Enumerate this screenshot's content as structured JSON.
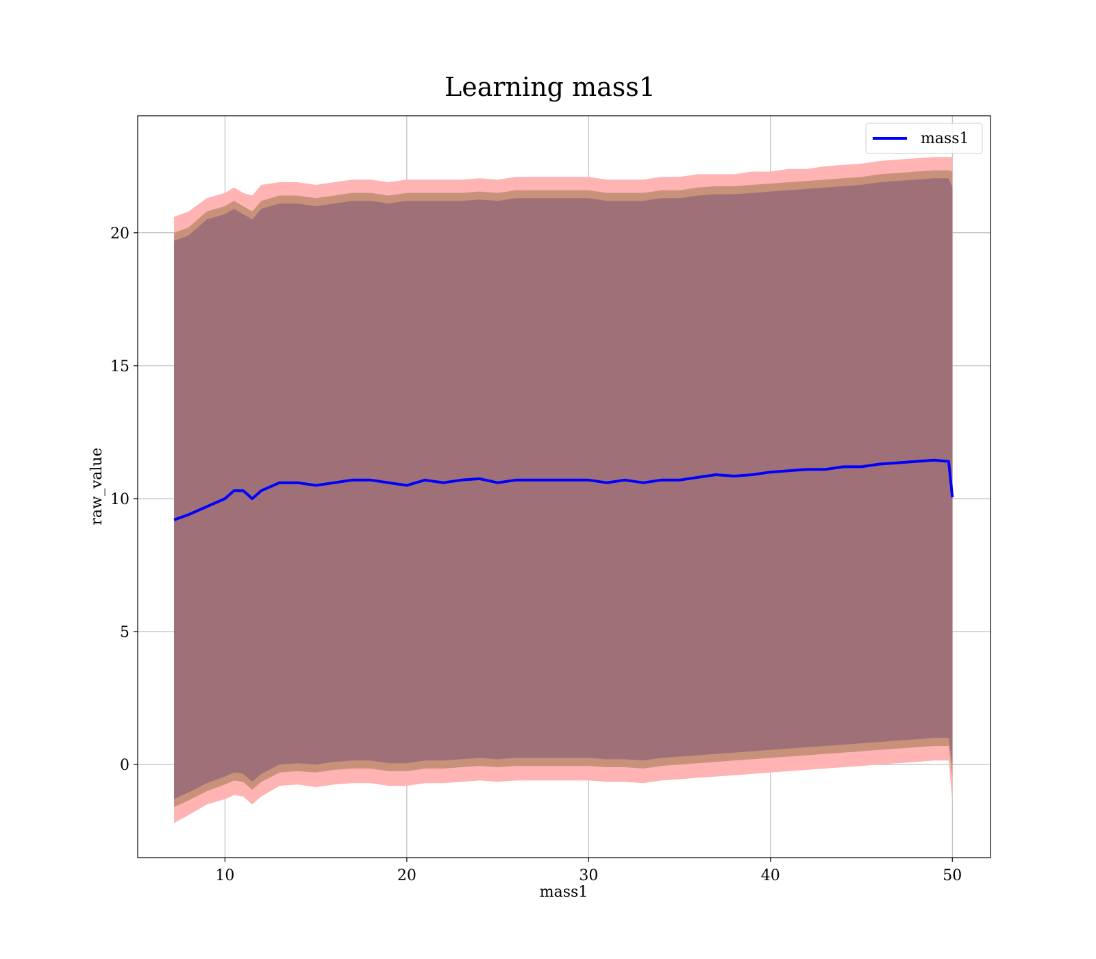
{
  "chart_data": {
    "type": "line",
    "title": "Learning mass1",
    "xlabel": "mass1",
    "ylabel": "raw_value",
    "xlim": [
      5.2,
      52.1
    ],
    "ylim": [
      -3.5,
      24.4
    ],
    "xticks": [
      10,
      20,
      30,
      40,
      50
    ],
    "yticks": [
      0,
      5,
      10,
      15,
      20
    ],
    "grid": true,
    "legend": {
      "position": "top-right",
      "entries": [
        "mass1"
      ]
    },
    "colors": {
      "line": "#0000ff",
      "band_outer": "#ffb3b3",
      "band_mid": "#c8927a",
      "band_inner": "#a07078",
      "grid": "#b0b0b0"
    },
    "x": [
      7.2,
      8,
      9,
      10,
      10.5,
      11,
      11.5,
      12,
      13,
      14,
      15,
      16,
      17,
      18,
      19,
      20,
      21,
      22,
      23,
      24,
      25,
      26,
      27,
      28,
      29,
      30,
      31,
      32,
      33,
      34,
      35,
      36,
      37,
      38,
      39,
      40,
      41,
      42,
      43,
      44,
      45,
      46,
      47,
      48,
      49,
      49.8,
      50
    ],
    "series": [
      {
        "name": "mass1",
        "values": [
          9.2,
          9.4,
          9.7,
          10.0,
          10.3,
          10.3,
          10.0,
          10.3,
          10.6,
          10.6,
          10.5,
          10.6,
          10.7,
          10.7,
          10.6,
          10.5,
          10.7,
          10.6,
          10.7,
          10.75,
          10.6,
          10.7,
          10.7,
          10.7,
          10.7,
          10.7,
          10.6,
          10.7,
          10.6,
          10.7,
          10.7,
          10.8,
          10.9,
          10.85,
          10.9,
          11.0,
          11.05,
          11.1,
          11.1,
          11.2,
          11.2,
          11.3,
          11.35,
          11.4,
          11.45,
          11.4,
          10.05
        ]
      }
    ],
    "bands": [
      {
        "upper": [
          20.6,
          20.8,
          21.3,
          21.5,
          21.7,
          21.5,
          21.4,
          21.8,
          21.9,
          21.9,
          21.8,
          21.9,
          22.0,
          22.0,
          21.9,
          22.0,
          22.0,
          22.0,
          22.0,
          22.05,
          22.0,
          22.1,
          22.1,
          22.1,
          22.1,
          22.1,
          22.0,
          22.0,
          22.0,
          22.1,
          22.1,
          22.2,
          22.2,
          22.2,
          22.3,
          22.3,
          22.4,
          22.4,
          22.5,
          22.55,
          22.6,
          22.7,
          22.75,
          22.8,
          22.85,
          22.85,
          22.85
        ],
        "lower": [
          -2.2,
          -1.9,
          -1.5,
          -1.3,
          -1.15,
          -1.2,
          -1.5,
          -1.2,
          -0.8,
          -0.75,
          -0.85,
          -0.75,
          -0.7,
          -0.7,
          -0.8,
          -0.8,
          -0.7,
          -0.7,
          -0.65,
          -0.6,
          -0.65,
          -0.6,
          -0.6,
          -0.6,
          -0.6,
          -0.6,
          -0.65,
          -0.65,
          -0.7,
          -0.6,
          -0.55,
          -0.5,
          -0.45,
          -0.4,
          -0.35,
          -0.3,
          -0.25,
          -0.2,
          -0.15,
          -0.1,
          -0.05,
          0.0,
          0.05,
          0.1,
          0.15,
          0.15,
          -1.4
        ]
      },
      {
        "upper": [
          20.0,
          20.2,
          20.8,
          21.0,
          21.2,
          21.0,
          20.8,
          21.2,
          21.4,
          21.4,
          21.3,
          21.4,
          21.5,
          21.5,
          21.4,
          21.5,
          21.5,
          21.5,
          21.5,
          21.55,
          21.5,
          21.6,
          21.6,
          21.6,
          21.6,
          21.6,
          21.5,
          21.5,
          21.5,
          21.6,
          21.6,
          21.7,
          21.75,
          21.75,
          21.8,
          21.85,
          21.9,
          21.95,
          22.0,
          22.05,
          22.1,
          22.2,
          22.25,
          22.3,
          22.35,
          22.35,
          22.3
        ],
        "lower": [
          -1.6,
          -1.35,
          -1.0,
          -0.75,
          -0.6,
          -0.65,
          -0.95,
          -0.65,
          -0.3,
          -0.25,
          -0.3,
          -0.2,
          -0.15,
          -0.15,
          -0.25,
          -0.25,
          -0.15,
          -0.15,
          -0.1,
          -0.05,
          -0.1,
          -0.05,
          -0.05,
          -0.05,
          -0.05,
          -0.05,
          -0.1,
          -0.1,
          -0.15,
          -0.05,
          0.0,
          0.05,
          0.1,
          0.15,
          0.2,
          0.25,
          0.3,
          0.35,
          0.4,
          0.45,
          0.5,
          0.55,
          0.6,
          0.65,
          0.7,
          0.7,
          -0.5
        ]
      },
      {
        "upper": [
          19.7,
          19.9,
          20.5,
          20.7,
          20.9,
          20.7,
          20.5,
          20.9,
          21.1,
          21.1,
          21.0,
          21.1,
          21.2,
          21.2,
          21.1,
          21.2,
          21.2,
          21.2,
          21.2,
          21.25,
          21.2,
          21.3,
          21.3,
          21.3,
          21.3,
          21.3,
          21.2,
          21.2,
          21.2,
          21.3,
          21.3,
          21.4,
          21.45,
          21.45,
          21.5,
          21.55,
          21.6,
          21.65,
          21.7,
          21.75,
          21.8,
          21.9,
          21.95,
          22.0,
          22.05,
          22.05,
          21.7
        ],
        "lower": [
          -1.3,
          -1.05,
          -0.7,
          -0.45,
          -0.3,
          -0.35,
          -0.65,
          -0.35,
          0.0,
          0.05,
          0.0,
          0.1,
          0.15,
          0.15,
          0.05,
          0.05,
          0.15,
          0.15,
          0.2,
          0.25,
          0.2,
          0.25,
          0.25,
          0.25,
          0.25,
          0.25,
          0.2,
          0.2,
          0.15,
          0.25,
          0.3,
          0.35,
          0.4,
          0.45,
          0.5,
          0.55,
          0.6,
          0.65,
          0.7,
          0.75,
          0.8,
          0.85,
          0.9,
          0.95,
          1.0,
          1.0,
          0.0
        ]
      }
    ]
  }
}
